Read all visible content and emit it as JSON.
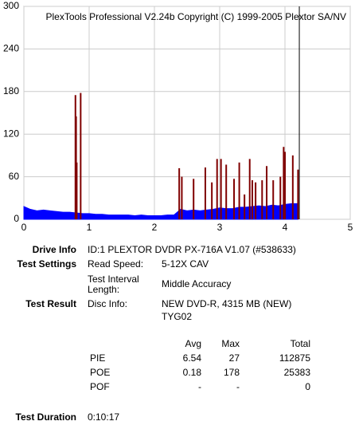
{
  "chart_data": {
    "type": "combo",
    "title": "PlexTools Professional V2.24b Copyright (C) 1999-2005 Plextor SA/NV",
    "xlim": [
      0,
      5
    ],
    "xticks": [
      0,
      1,
      2,
      3,
      4,
      5
    ],
    "ylim": [
      0,
      300
    ],
    "yticks": [
      0,
      60,
      120,
      180,
      240,
      300
    ],
    "grid": true,
    "series": [
      {
        "type": "area",
        "color": "#0000ff",
        "x": [
          0.0,
          0.1,
          0.2,
          0.3,
          0.4,
          0.5,
          0.6,
          0.7,
          0.8,
          0.9,
          1.0,
          1.1,
          1.2,
          1.3,
          1.4,
          1.5,
          1.6,
          1.7,
          1.8,
          1.9,
          2.0,
          2.1,
          2.2,
          2.3,
          2.4,
          2.5,
          2.6,
          2.7,
          2.8,
          2.9,
          3.0,
          3.1,
          3.2,
          3.3,
          3.4,
          3.5,
          3.6,
          3.7,
          3.8,
          3.9,
          4.0,
          4.1,
          4.2
        ],
        "values": [
          18,
          14,
          12,
          13,
          12,
          11,
          10,
          10,
          9,
          8,
          8,
          7,
          7,
          6,
          6,
          6,
          6,
          5,
          6,
          5,
          5,
          5,
          6,
          6,
          14,
          12,
          13,
          12,
          13,
          14,
          16,
          15,
          15,
          17,
          17,
          18,
          19,
          18,
          20,
          19,
          21,
          22,
          22
        ]
      },
      {
        "type": "bar",
        "color": "#800000",
        "x": [
          0.79,
          0.8,
          0.81,
          0.87,
          2.38,
          2.42,
          2.6,
          2.78,
          2.88,
          2.96,
          3.02,
          3.1,
          3.22,
          3.3,
          3.38,
          3.46,
          3.5,
          3.55,
          3.65,
          3.72,
          3.82,
          3.93,
          3.98,
          4.0,
          4.12,
          4.2
        ],
        "values": [
          175,
          145,
          80,
          178,
          72,
          60,
          57,
          73,
          52,
          85,
          85,
          77,
          57,
          80,
          35,
          85,
          55,
          52,
          55,
          75,
          55,
          60,
          102,
          95,
          90,
          70
        ]
      }
    ],
    "end_x": 4.22,
    "end_color": "#000000"
  },
  "info": {
    "drive_label": "Drive Info",
    "drive_value": "ID:1 PLEXTOR DVDR PX-716A V1.07 (#538633)",
    "settings_label": "Test Settings",
    "speed_label": "Read Speed:",
    "speed_value": "5-12X CAV",
    "interval_label": [
      "Test Interval",
      "Length:"
    ],
    "interval_value": "Middle Accuracy",
    "result_label": "Test Result",
    "disc_label": "Disc Info:",
    "disc_value": [
      "NEW DVD-R, 4315 MB (NEW)",
      "TYG02"
    ],
    "duration_label": "Test Duration",
    "duration_value": "0:10:17"
  },
  "stats": {
    "header": [
      "Avg",
      "Max",
      "Total"
    ],
    "rows": [
      [
        "PIE",
        "6.54",
        "27",
        "112875"
      ],
      [
        "POE",
        "0.18",
        "178",
        "25383"
      ],
      [
        "POF",
        "-",
        "-",
        "0"
      ]
    ]
  }
}
